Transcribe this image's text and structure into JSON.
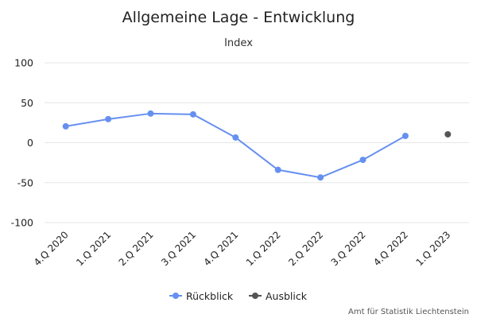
{
  "chart_data": {
    "type": "line",
    "title": "Allgemeine Lage - Entwicklung",
    "subtitle": "Index",
    "categories": [
      "4.Q 2020",
      "1.Q 2021",
      "2.Q 2021",
      "3.Q 2021",
      "4.Q 2021",
      "1.Q 2022",
      "2.Q 2022",
      "3.Q 2022",
      "4.Q 2022",
      "1.Q 2023"
    ],
    "ylim": [
      -100,
      100
    ],
    "yticks": [
      100,
      50,
      0,
      -50,
      -100
    ],
    "grid": true,
    "legend_position": "bottom-center",
    "series": [
      {
        "name": "Rückblick",
        "color": "#6690f0",
        "values": [
          20.5,
          29.5,
          36.5,
          35.5,
          6.5,
          -34,
          -43.5,
          -21.5,
          8.5,
          null
        ]
      },
      {
        "name": "Ausblick",
        "color": "#555555",
        "values": [
          null,
          null,
          null,
          null,
          null,
          null,
          null,
          null,
          null,
          10.5
        ]
      }
    ],
    "credit": "Amt für Statistik Liechtenstein"
  }
}
